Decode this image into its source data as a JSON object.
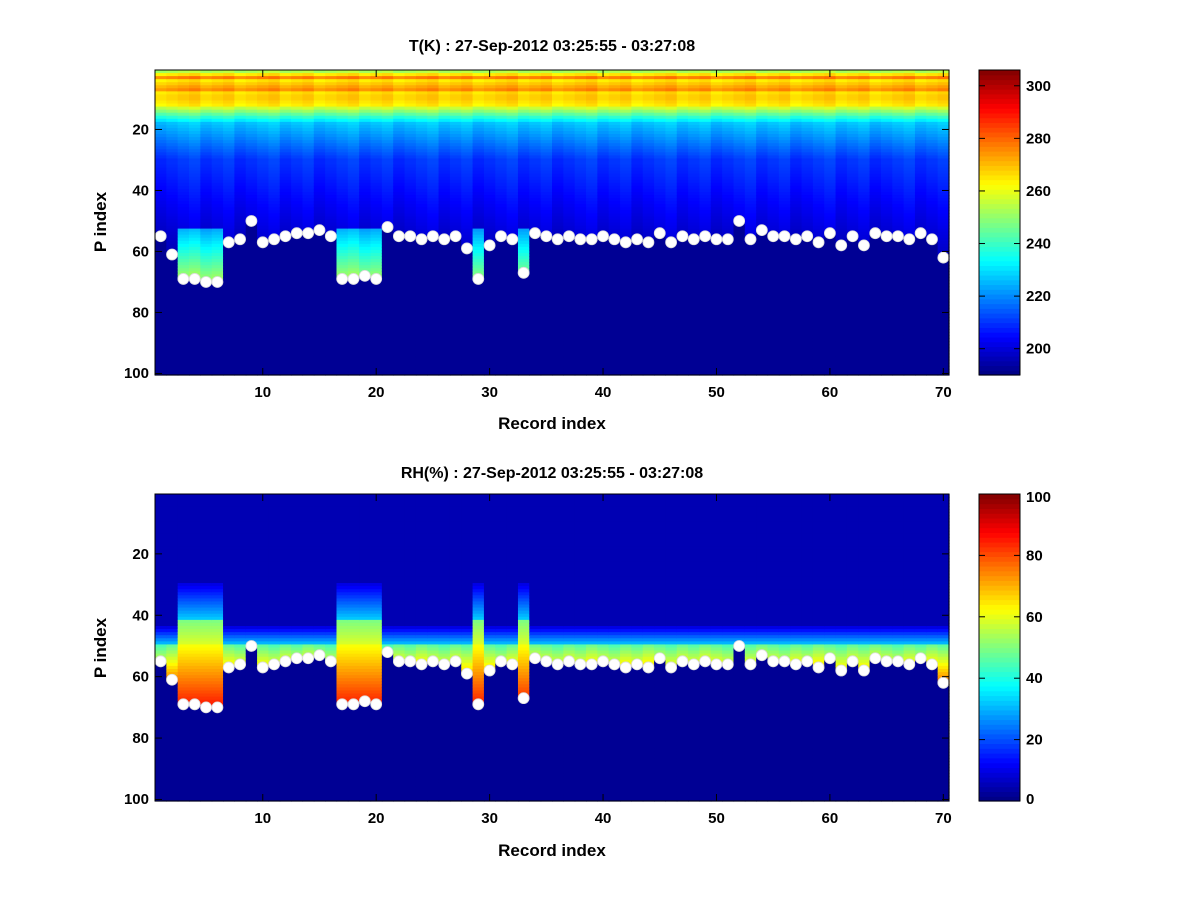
{
  "figure": {
    "background": "#ffffff"
  },
  "colormap": {
    "name": "jet"
  },
  "chart_data": [
    {
      "type": "heatmap",
      "title": "T(K) : 27-Sep-2012 03:25:55 - 03:27:08",
      "xlabel": "Record index",
      "ylabel": "P index",
      "xlim": [
        0.5,
        70.5
      ],
      "ylim": [
        0.5,
        100.5
      ],
      "y_reversed": true,
      "xticks": [
        10,
        20,
        30,
        40,
        50,
        60,
        70
      ],
      "yticks": [
        20,
        40,
        60,
        80,
        100
      ],
      "colorbar": {
        "min": 190,
        "max": 306,
        "ticks": [
          200,
          220,
          240,
          260,
          280,
          300
        ]
      },
      "description": "Temperature profile per record; warm band near P index 8-12, cooling to a near-uniform low value below the surface level marked by the white dots.",
      "surface_markers": {
        "x": [
          1,
          2,
          3,
          4,
          5,
          6,
          7,
          8,
          9,
          10,
          11,
          12,
          13,
          14,
          15,
          16,
          17,
          18,
          19,
          20,
          21,
          22,
          23,
          24,
          25,
          26,
          27,
          28,
          29,
          30,
          31,
          32,
          33,
          34,
          35,
          36,
          37,
          38,
          39,
          40,
          41,
          42,
          43,
          44,
          45,
          46,
          47,
          48,
          49,
          50,
          51,
          52,
          53,
          54,
          55,
          56,
          57,
          58,
          59,
          60,
          61,
          62,
          63,
          64,
          65,
          66,
          67,
          68,
          69,
          70
        ],
        "y": [
          55,
          61,
          69,
          69,
          70,
          70,
          57,
          56,
          50,
          57,
          56,
          55,
          54,
          54,
          53,
          55,
          69,
          69,
          68,
          69,
          52,
          55,
          55,
          56,
          55,
          56,
          55,
          59,
          69,
          58,
          55,
          56,
          67,
          54,
          55,
          56,
          55,
          56,
          56,
          55,
          56,
          57,
          56,
          57,
          54,
          57,
          55,
          56,
          55,
          56,
          56,
          50,
          56,
          53,
          55,
          55,
          56,
          55,
          57,
          54,
          58,
          55,
          58,
          54,
          55,
          55,
          56,
          54,
          56,
          62
        ],
        "color": "#ffffff"
      }
    },
    {
      "type": "heatmap",
      "title": "RH(%) : 27-Sep-2012 03:25:55 - 03:27:08",
      "xlabel": "Record index",
      "ylabel": "P index",
      "xlim": [
        0.5,
        70.5
      ],
      "ylim": [
        0.5,
        100.5
      ],
      "y_reversed": true,
      "xticks": [
        10,
        20,
        30,
        40,
        50,
        60,
        70
      ],
      "yticks": [
        20,
        40,
        60,
        80,
        100
      ],
      "colorbar": {
        "min": 0,
        "max": 100,
        "ticks": [
          0,
          20,
          40,
          60,
          80,
          100
        ]
      },
      "description": "Relative humidity profile per record; moist layer (40-85%) just above the surface level, dry elsewhere.",
      "surface_markers": {
        "x": [
          1,
          2,
          3,
          4,
          5,
          6,
          7,
          8,
          9,
          10,
          11,
          12,
          13,
          14,
          15,
          16,
          17,
          18,
          19,
          20,
          21,
          22,
          23,
          24,
          25,
          26,
          27,
          28,
          29,
          30,
          31,
          32,
          33,
          34,
          35,
          36,
          37,
          38,
          39,
          40,
          41,
          42,
          43,
          44,
          45,
          46,
          47,
          48,
          49,
          50,
          51,
          52,
          53,
          54,
          55,
          56,
          57,
          58,
          59,
          60,
          61,
          62,
          63,
          64,
          65,
          66,
          67,
          68,
          69,
          70
        ],
        "y": [
          55,
          61,
          69,
          69,
          70,
          70,
          57,
          56,
          50,
          57,
          56,
          55,
          54,
          54,
          53,
          55,
          69,
          69,
          68,
          69,
          52,
          55,
          55,
          56,
          55,
          56,
          55,
          59,
          69,
          58,
          55,
          56,
          67,
          54,
          55,
          56,
          55,
          56,
          56,
          55,
          56,
          57,
          56,
          57,
          54,
          57,
          55,
          56,
          55,
          56,
          56,
          50,
          56,
          53,
          55,
          55,
          56,
          55,
          57,
          54,
          58,
          55,
          58,
          54,
          55,
          55,
          56,
          54,
          56,
          62
        ],
        "color": "#ffffff"
      }
    }
  ]
}
